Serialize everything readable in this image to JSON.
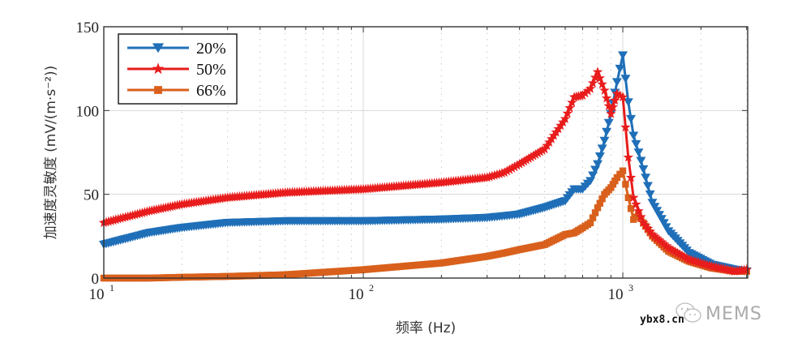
{
  "chart_data": {
    "type": "line",
    "title": "",
    "xlabel": "频率 (Hz)",
    "ylabel": "加速度灵敏度 (mV/(m·s⁻²))",
    "xscale": "log",
    "xlim": [
      10,
      3000
    ],
    "ylim": [
      0,
      150
    ],
    "grid": true,
    "legend_position": "upper left",
    "x_ticks": [
      {
        "value": 10,
        "base": "10",
        "exp": "1"
      },
      {
        "value": 100,
        "base": "10",
        "exp": "2"
      },
      {
        "value": 1000,
        "base": "10",
        "exp": "3"
      }
    ],
    "y_ticks": [
      0,
      50,
      100,
      150
    ],
    "x": [
      10,
      15,
      20,
      30,
      50,
      100,
      200,
      300,
      350,
      400,
      500,
      600,
      650,
      700,
      750,
      800,
      850,
      900,
      950,
      1000,
      1050,
      1100,
      1150,
      1200,
      1300,
      1500,
      1800,
      2200,
      2700,
      3000
    ],
    "series": [
      {
        "name": "20%",
        "color": "#1f6fb8",
        "marker": "triangle-down",
        "values": [
          20,
          27,
          30,
          33,
          34,
          34,
          35,
          36,
          37,
          38,
          42,
          46,
          53,
          53,
          58,
          68,
          82,
          98,
          117,
          133,
          105,
          85,
          75,
          65,
          45,
          28,
          15,
          8,
          5,
          4
        ]
      },
      {
        "name": "50%",
        "color": "#e81c1c",
        "marker": "star",
        "values": [
          33,
          40,
          44,
          48,
          51,
          53,
          57,
          60,
          63,
          68,
          77,
          95,
          108,
          109,
          113,
          123,
          112,
          98,
          110,
          108,
          72,
          48,
          40,
          33,
          26,
          18,
          11,
          7,
          4,
          5
        ]
      },
      {
        "name": "66%",
        "color": "#d9601c",
        "marker": "square",
        "values": [
          0,
          0,
          0.5,
          1,
          2,
          5,
          9,
          13,
          15,
          17,
          20,
          26,
          27,
          30,
          33,
          42,
          50,
          54,
          60,
          64,
          48,
          35,
          38,
          33,
          25,
          16,
          10,
          6,
          4,
          4
        ]
      }
    ]
  },
  "legend": {
    "items": [
      {
        "label": "20%",
        "color": "#1f6fb8",
        "marker": "triangle-down"
      },
      {
        "label": "50%",
        "color": "#e81c1c",
        "marker": "star"
      },
      {
        "label": "66%",
        "color": "#d9601c",
        "marker": "square"
      }
    ]
  },
  "watermark": {
    "site": "ybx8.cn",
    "brand": "MEMS",
    "icon": "wechat-icon"
  }
}
